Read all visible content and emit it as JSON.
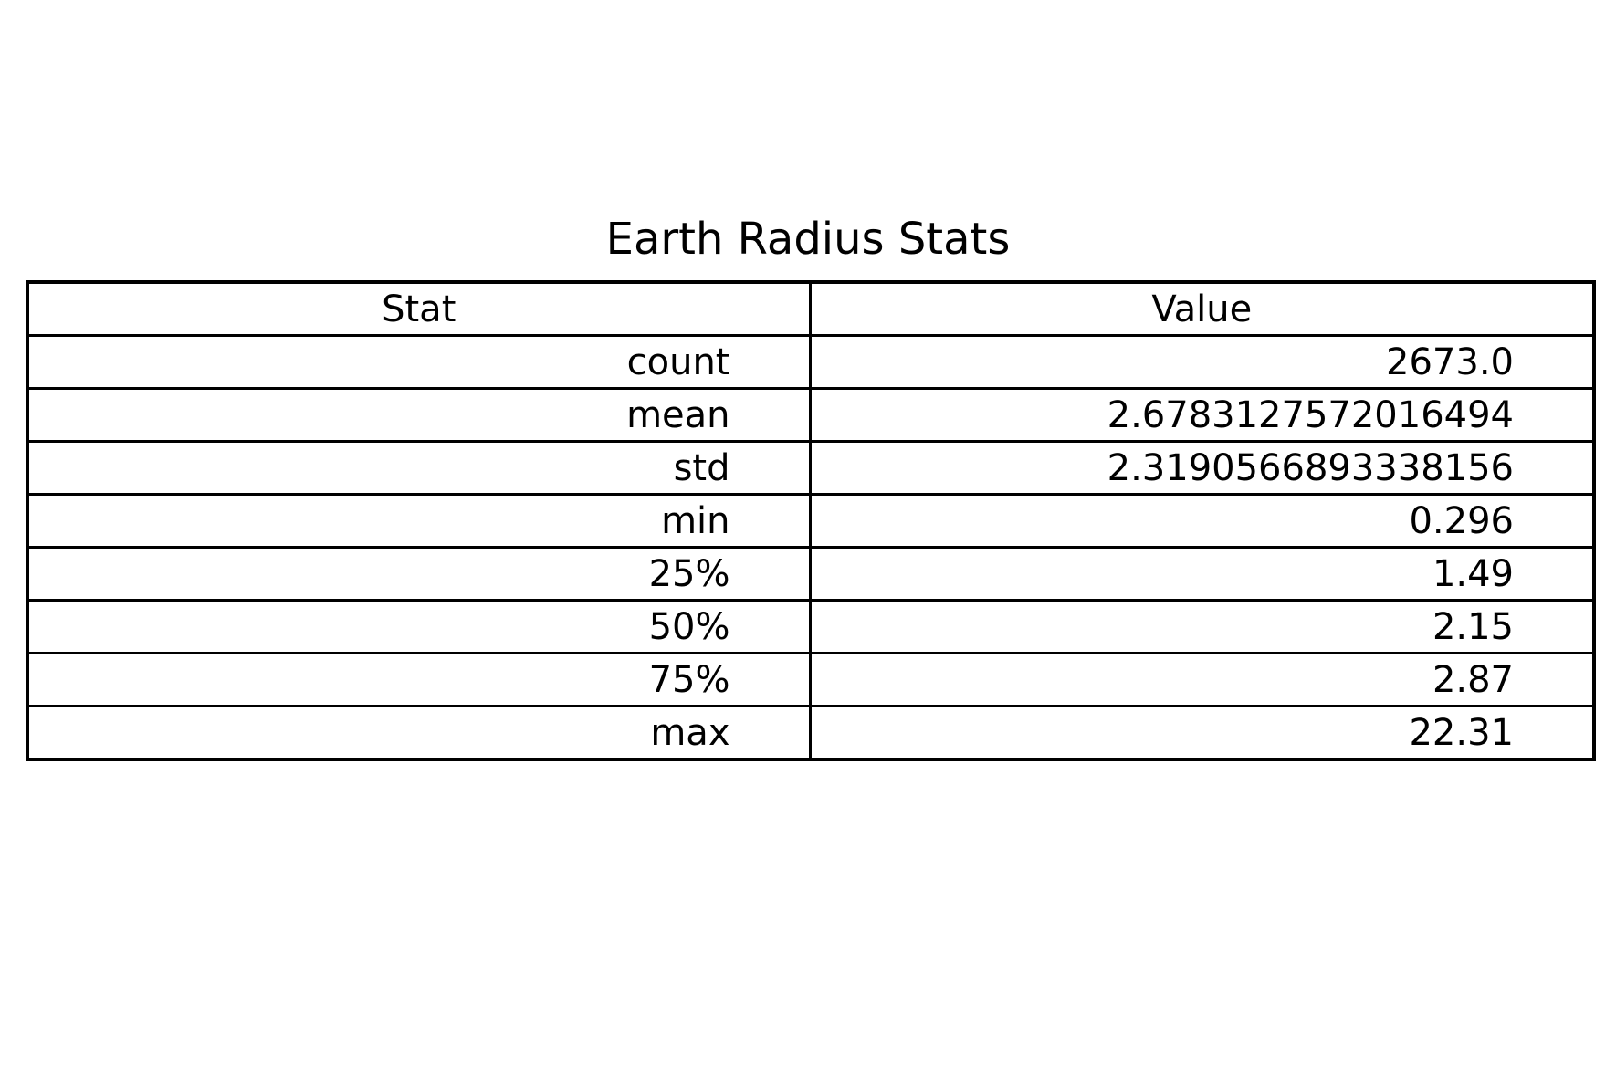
{
  "chart_data": {
    "type": "table",
    "title": "Earth Radius Stats",
    "columns": [
      "Stat",
      "Value"
    ],
    "rows": [
      [
        "count",
        "2673.0"
      ],
      [
        "mean",
        "2.6783127572016494"
      ],
      [
        "std",
        "2.3190566893338156"
      ],
      [
        "min",
        "0.296"
      ],
      [
        "25%",
        "1.49"
      ],
      [
        "50%",
        "2.15"
      ],
      [
        "75%",
        "2.87"
      ],
      [
        "max",
        "22.31"
      ]
    ]
  }
}
